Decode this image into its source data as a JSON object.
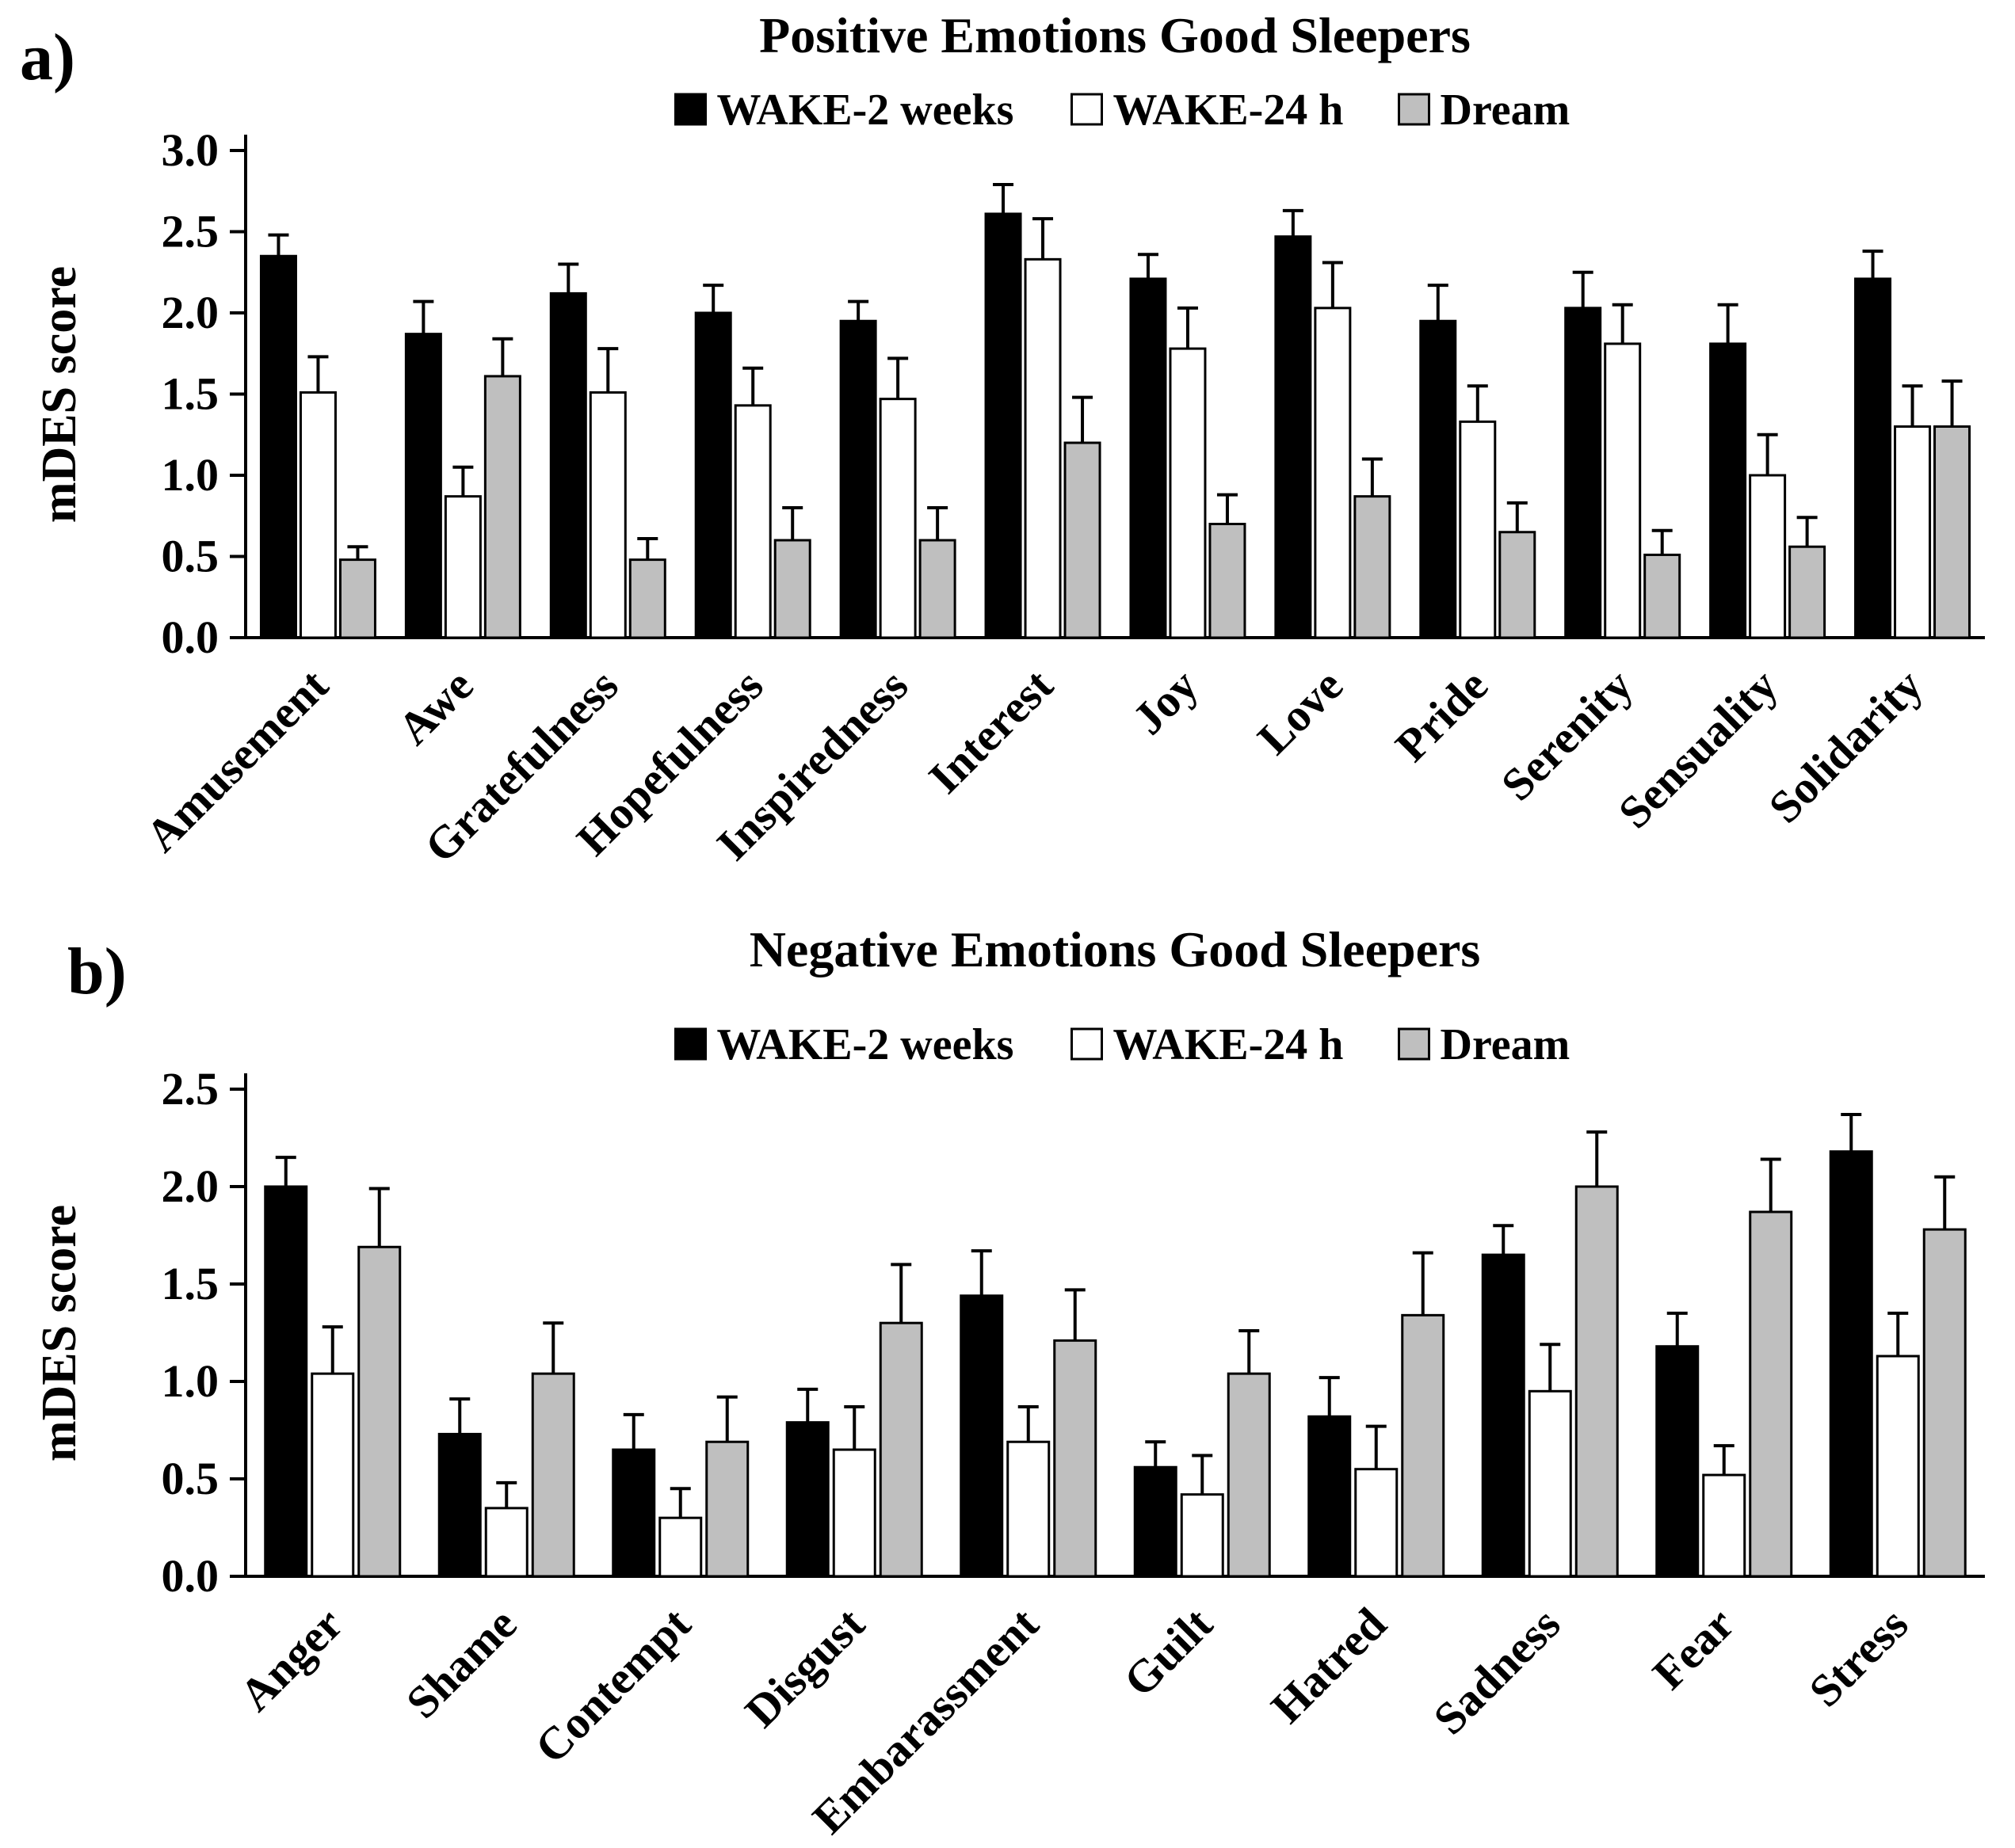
{
  "colors": {
    "axis": "#000000",
    "error_bar": "#000000",
    "background": "#ffffff"
  },
  "chart_data": [
    {
      "type": "bar",
      "panel": "a)",
      "title": "Positive Emotions Good Sleepers",
      "ylabel": "mDES score",
      "ylim": [
        0.0,
        3.0
      ],
      "ytick_step": 0.5,
      "grid": false,
      "legend_position": "top",
      "categories": [
        "Amusement",
        "Awe",
        "Gratefulness",
        "Hopefulness",
        "Inspiredness",
        "Interest",
        "Joy",
        "Love",
        "Pride",
        "Serenity",
        "Sensuality",
        "Solidarity"
      ],
      "series": [
        {
          "name": "WAKE-2 weeks",
          "fill": "#000000",
          "values": [
            2.35,
            1.87,
            2.12,
            2.0,
            1.95,
            2.61,
            2.21,
            2.47,
            1.95,
            2.03,
            1.81,
            2.21
          ],
          "errors": [
            0.13,
            0.2,
            0.18,
            0.17,
            0.12,
            0.18,
            0.15,
            0.16,
            0.22,
            0.22,
            0.24,
            0.17
          ]
        },
        {
          "name": "WAKE-24 h",
          "fill": "#ffffff",
          "values": [
            1.51,
            0.87,
            1.51,
            1.43,
            1.47,
            2.33,
            1.78,
            2.03,
            1.33,
            1.81,
            1.0,
            1.3
          ],
          "errors": [
            0.22,
            0.18,
            0.27,
            0.23,
            0.25,
            0.25,
            0.25,
            0.28,
            0.22,
            0.24,
            0.25,
            0.25
          ]
        },
        {
          "name": "Dream",
          "fill": "#bfbfbf",
          "values": [
            0.48,
            1.61,
            0.48,
            0.6,
            0.6,
            1.2,
            0.7,
            0.87,
            0.65,
            0.51,
            0.56,
            1.3
          ],
          "errors": [
            0.08,
            0.23,
            0.13,
            0.2,
            0.2,
            0.28,
            0.18,
            0.23,
            0.18,
            0.15,
            0.18,
            0.28
          ]
        }
      ]
    },
    {
      "type": "bar",
      "panel": "b)",
      "title": "Negative Emotions Good Sleepers",
      "ylabel": "mDES score",
      "ylim": [
        0.0,
        2.5
      ],
      "ytick_step": 0.5,
      "grid": false,
      "legend_position": "top",
      "categories": [
        "Anger",
        "Shame",
        "Contempt",
        "Disgust",
        "Embarassment",
        "Guilt",
        "Hatred",
        "Sadness",
        "Fear",
        "Stress"
      ],
      "series": [
        {
          "name": "WAKE-2 weeks",
          "fill": "#000000",
          "values": [
            2.0,
            0.73,
            0.65,
            0.79,
            1.44,
            0.56,
            0.82,
            1.65,
            1.18,
            2.18
          ],
          "errors": [
            0.15,
            0.18,
            0.18,
            0.17,
            0.23,
            0.13,
            0.2,
            0.15,
            0.17,
            0.19
          ]
        },
        {
          "name": "WAKE-24 h",
          "fill": "#ffffff",
          "values": [
            1.04,
            0.35,
            0.3,
            0.65,
            0.69,
            0.42,
            0.55,
            0.95,
            0.52,
            1.13
          ],
          "errors": [
            0.24,
            0.13,
            0.15,
            0.22,
            0.18,
            0.2,
            0.22,
            0.24,
            0.15,
            0.22
          ]
        },
        {
          "name": "Dream",
          "fill": "#bfbfbf",
          "values": [
            1.69,
            1.04,
            0.69,
            1.3,
            1.21,
            1.04,
            1.34,
            2.0,
            1.87,
            1.78
          ],
          "errors": [
            0.3,
            0.26,
            0.23,
            0.3,
            0.26,
            0.22,
            0.32,
            0.28,
            0.27,
            0.27
          ]
        }
      ]
    }
  ]
}
